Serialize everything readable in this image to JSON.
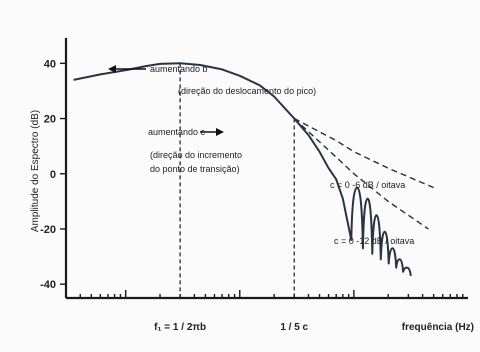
{
  "chart_data": {
    "type": "line",
    "ylabel": "Amplitude do Espectro (dB)",
    "xlabel": "frequência (Hz)",
    "x_scale": "log",
    "ylim": [
      -45,
      47
    ],
    "yticks": [
      40,
      20,
      0,
      -20,
      -40
    ],
    "ytick_labels": [
      "40",
      "20",
      "0",
      "-20",
      "-40"
    ],
    "xlim": [
      0.03,
      100
    ],
    "x_markers": [
      {
        "x": 0.3,
        "label": "f₁ = 1 / 2πb"
      },
      {
        "x": 3,
        "label": "1 / 5 c"
      }
    ],
    "annotations": {
      "peak_arrow": "aumentando b",
      "peak_note": "(direção do deslocamento do pico)",
      "knee_arrow": "aumentando c",
      "knee_note_1": "(direção do incremento",
      "knee_note_2": "do ponto de transição)",
      "asym_1": "c = 0    -6 dB / oitava",
      "asym_2": "c = 0  -12 dB / oitava"
    },
    "series": [
      {
        "x": [
          0.035,
          0.06,
          0.1,
          0.15,
          0.2,
          0.3,
          0.45,
          0.7,
          1.0,
          1.5,
          2.0,
          3.0,
          4.0,
          5.0,
          6.0,
          7.0,
          8.0
        ],
        "y": [
          34,
          36,
          37.5,
          39,
          39.8,
          40,
          39.4,
          37.8,
          35.5,
          32,
          28,
          20,
          14,
          8,
          2,
          -2,
          -9
        ]
      },
      {
        "x": [
          3,
          7,
          10,
          20,
          50
        ],
        "y": [
          20,
          12,
          8,
          2,
          -5
        ]
      },
      {
        "x": [
          3,
          7,
          10,
          20,
          45
        ],
        "y": [
          20,
          6,
          0,
          -10,
          -20
        ]
      }
    ],
    "lobes": {
      "nulls_x": [
        9.5,
        12,
        14.5,
        17.2,
        20.2,
        23.5,
        27,
        31.5
      ],
      "tops_y": [
        -2,
        -5,
        -9,
        -15,
        -21,
        -27,
        -31,
        -34
      ],
      "null_y": [
        -24,
        -27,
        -29,
        -31,
        -32.5,
        -34,
        -35.5,
        -37
      ]
    },
    "grid": false,
    "legend": "none"
  }
}
